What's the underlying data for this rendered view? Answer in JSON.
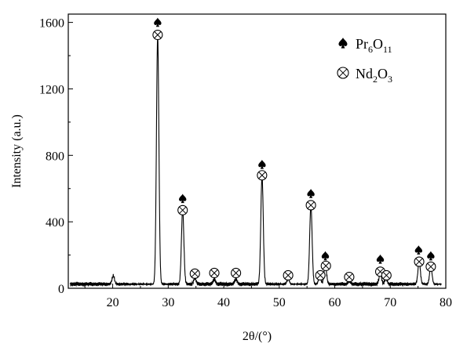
{
  "chart_data": {
    "type": "line",
    "xlabel": "2θ/(°)",
    "ylabel": "Intensity (a.u.)",
    "xlim": [
      12,
      80
    ],
    "ylim": [
      0,
      1650
    ],
    "x_ticks": [
      20,
      30,
      40,
      50,
      60,
      70,
      80
    ],
    "y_ticks": [
      0,
      400,
      800,
      1200,
      1600
    ],
    "grid": false,
    "legend_placement": "top-right",
    "baseline": 25,
    "line_color": "#000000",
    "series": [
      {
        "peaks": [
          {
            "x": 20.1,
            "y": 75
          },
          {
            "x": 28.1,
            "y": 1520
          },
          {
            "x": 32.6,
            "y": 470
          },
          {
            "x": 34.8,
            "y": 60
          },
          {
            "x": 38.3,
            "y": 55
          },
          {
            "x": 42.2,
            "y": 55
          },
          {
            "x": 46.9,
            "y": 680
          },
          {
            "x": 51.6,
            "y": 55
          },
          {
            "x": 55.7,
            "y": 500
          },
          {
            "x": 57.3,
            "y": 70
          },
          {
            "x": 58.3,
            "y": 140
          },
          {
            "x": 62.6,
            "y": 45
          },
          {
            "x": 68.2,
            "y": 90
          },
          {
            "x": 69.2,
            "y": 60
          },
          {
            "x": 75.2,
            "y": 160
          },
          {
            "x": 77.3,
            "y": 130
          }
        ]
      }
    ],
    "markers": {
      "pr6o11": [
        {
          "x": 28.1,
          "y": 1600
        },
        {
          "x": 32.6,
          "y": 540
        },
        {
          "x": 46.9,
          "y": 745
        },
        {
          "x": 55.7,
          "y": 570
        },
        {
          "x": 58.3,
          "y": 195
        },
        {
          "x": 68.2,
          "y": 175
        },
        {
          "x": 75.1,
          "y": 230
        },
        {
          "x": 77.3,
          "y": 195
        }
      ],
      "nd2o3": [
        {
          "x": 28.1,
          "y": 1525
        },
        {
          "x": 32.6,
          "y": 470
        },
        {
          "x": 34.8,
          "y": 88
        },
        {
          "x": 38.3,
          "y": 92
        },
        {
          "x": 42.2,
          "y": 92
        },
        {
          "x": 46.9,
          "y": 680
        },
        {
          "x": 51.6,
          "y": 78
        },
        {
          "x": 55.7,
          "y": 500
        },
        {
          "x": 57.4,
          "y": 78
        },
        {
          "x": 58.4,
          "y": 135
        },
        {
          "x": 62.6,
          "y": 68
        },
        {
          "x": 68.2,
          "y": 100
        },
        {
          "x": 69.3,
          "y": 78
        },
        {
          "x": 75.2,
          "y": 160
        },
        {
          "x": 77.3,
          "y": 130
        }
      ]
    },
    "legend": [
      {
        "key": "pr6o11",
        "label_main": "Pr",
        "sub1": "6",
        "mid": "O",
        "sub2": "11"
      },
      {
        "key": "nd2o3",
        "label_main": "Nd",
        "sub1": "2",
        "mid": "O",
        "sub2": "3"
      }
    ]
  }
}
